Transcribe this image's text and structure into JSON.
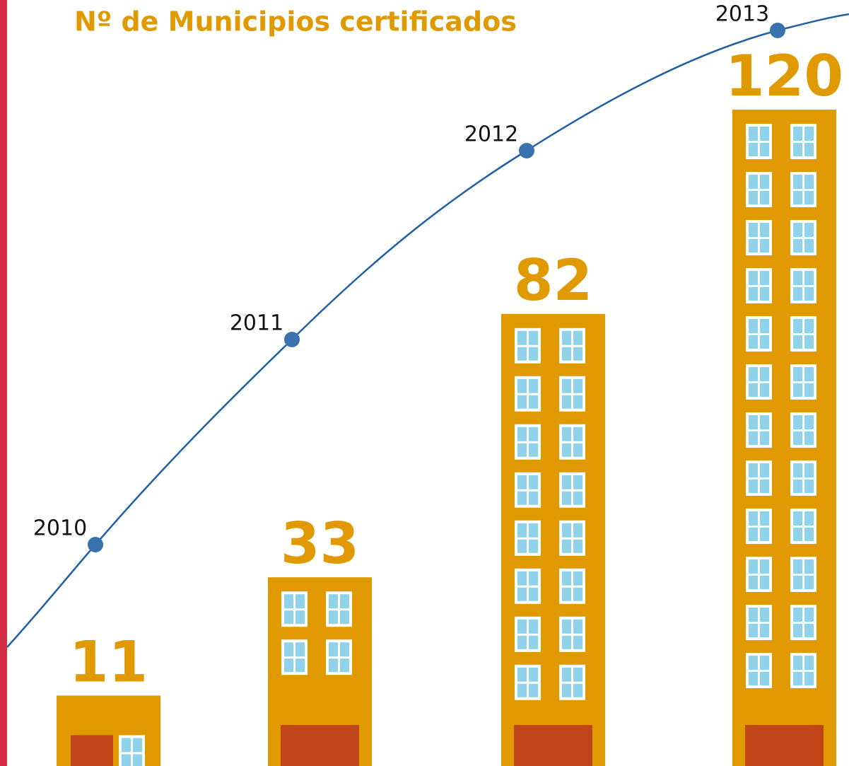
{
  "chart_data": {
    "type": "bar",
    "title": "Nº de Municipios certificados",
    "categories": [
      "2010",
      "2011",
      "2012",
      "2013"
    ],
    "values": [
      11,
      33,
      82,
      120
    ],
    "color": "#e09a00"
  }
}
